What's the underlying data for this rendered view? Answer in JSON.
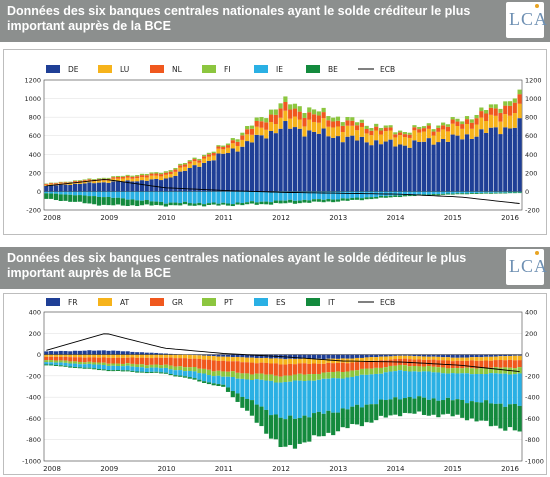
{
  "logo_text": "LCA",
  "charts": [
    {
      "title": "Données des six banques centrales nationales ayant le solde créditeur le plus important auprès de la BCE",
      "type": "stacked-bar",
      "series": [
        {
          "name": "DE",
          "color": "#1f3f96"
        },
        {
          "name": "LU",
          "color": "#f6b31b"
        },
        {
          "name": "NL",
          "color": "#f0581e"
        },
        {
          "name": "FI",
          "color": "#8cc63f"
        },
        {
          "name": "IE",
          "color": "#2ab0e4"
        },
        {
          "name": "BE",
          "color": "#138a3d"
        }
      ],
      "line_series": {
        "name": "ECB",
        "color": "#000000"
      },
      "ylim": [
        -200,
        1200
      ],
      "yticks": [
        "1200",
        "1000",
        "800",
        "600",
        "400",
        "200",
        "0",
        "-200"
      ],
      "xlabels": [
        "2008",
        "2009",
        "2010",
        "2011",
        "2012",
        "2013",
        "2014",
        "2015",
        "2016"
      ]
    },
    {
      "title": "Données des six banques centrales nationales ayant le solde déditeur le plus important auprès de la BCE",
      "type": "stacked-bar",
      "series": [
        {
          "name": "FR",
          "color": "#1f3f96"
        },
        {
          "name": "AT",
          "color": "#f6b31b"
        },
        {
          "name": "GR",
          "color": "#f0581e"
        },
        {
          "name": "PT",
          "color": "#8cc63f"
        },
        {
          "name": "ES",
          "color": "#2ab0e4"
        },
        {
          "name": "IT",
          "color": "#138a3d"
        }
      ],
      "line_series": {
        "name": "ECB",
        "color": "#000000"
      },
      "ylim": [
        -1000,
        400
      ],
      "yticks": [
        "400",
        "200",
        "0",
        "-200",
        "-400",
        "-600",
        "-800",
        "-1000"
      ],
      "xlabels": [
        "2008",
        "2009",
        "2010",
        "2011",
        "2012",
        "2013",
        "2014",
        "2015",
        "2016"
      ]
    }
  ],
  "chart_data": [
    {
      "type": "bar",
      "stacked": true,
      "title": "Données des six banques centrales nationales ayant le solde créditeur le plus important auprès de la BCE",
      "x": [
        "2008",
        "2009",
        "2010",
        "2011",
        "2012",
        "2013",
        "2014",
        "2015",
        "2016"
      ],
      "ylim": [
        -200,
        1200
      ],
      "series": [
        {
          "name": "DE",
          "values": [
            60,
            100,
            130,
            400,
            700,
            580,
            500,
            580,
            720
          ]
        },
        {
          "name": "LU",
          "values": [
            10,
            25,
            40,
            50,
            110,
            110,
            100,
            110,
            150
          ]
        },
        {
          "name": "NL",
          "values": [
            10,
            15,
            25,
            25,
            100,
            60,
            30,
            50,
            110
          ]
        },
        {
          "name": "FI",
          "values": [
            5,
            10,
            15,
            15,
            60,
            40,
            20,
            30,
            50
          ]
        },
        {
          "name": "IE",
          "values": [
            -20,
            -60,
            -120,
            -130,
            -100,
            -80,
            -40,
            -20,
            -10
          ]
        },
        {
          "name": "BE",
          "values": [
            -60,
            -90,
            -30,
            -20,
            -30,
            -25,
            -15,
            -10,
            -8
          ]
        },
        {
          "name": "ECB",
          "values": [
            60,
            130,
            40,
            10,
            -10,
            -20,
            -30,
            -60,
            -130
          ]
        }
      ]
    },
    {
      "type": "bar",
      "stacked": true,
      "title": "Données des six banques centrales nationales ayant le solde déditeur le plus important auprès de la BCE",
      "x": [
        "2008",
        "2009",
        "2010",
        "2011",
        "2012",
        "2013",
        "2014",
        "2015",
        "2016"
      ],
      "ylim": [
        -1000,
        400
      ],
      "series": [
        {
          "name": "FR",
          "values": [
            30,
            40,
            10,
            -20,
            -40,
            -40,
            -10,
            -30,
            -10
          ]
        },
        {
          "name": "AT",
          "values": [
            -20,
            -30,
            -30,
            -40,
            -50,
            -40,
            -30,
            -30,
            -40
          ]
        },
        {
          "name": "GR",
          "values": [
            -30,
            -50,
            -70,
            -100,
            -110,
            -80,
            -60,
            -70,
            -70
          ]
        },
        {
          "name": "PT",
          "values": [
            -20,
            -20,
            -30,
            -50,
            -60,
            -60,
            -50,
            -50,
            -60
          ]
        },
        {
          "name": "ES",
          "values": [
            -20,
            -40,
            -40,
            -80,
            -350,
            -300,
            -250,
            -250,
            -300
          ]
        },
        {
          "name": "IT",
          "values": [
            -10,
            -10,
            -10,
            -20,
            -280,
            -180,
            -150,
            -150,
            -250
          ]
        },
        {
          "name": "ECB",
          "values": [
            40,
            200,
            60,
            10,
            -20,
            -60,
            -70,
            -100,
            -160
          ]
        }
      ]
    }
  ]
}
